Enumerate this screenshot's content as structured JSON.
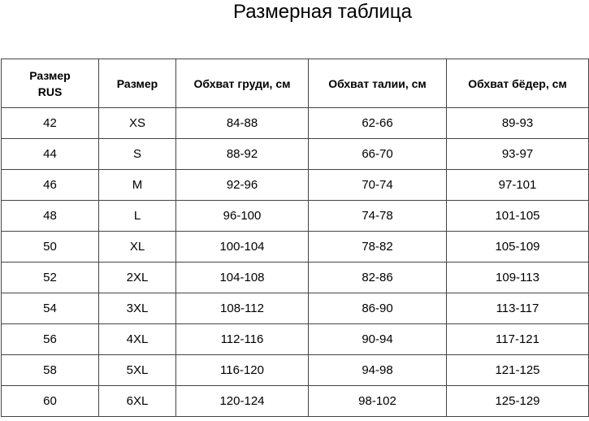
{
  "title": "Размерная таблица",
  "headers": [
    "Размер RUS",
    "Размер",
    "Обхват груди, см",
    "Обхват талии, см",
    "Обхват бёдер, см"
  ],
  "header_rus_line1": "Размер",
  "header_rus_line2": "RUS",
  "rows": [
    [
      "42",
      "XS",
      "84-88",
      "62-66",
      "89-93"
    ],
    [
      "44",
      "S",
      "88-92",
      "66-70",
      "93-97"
    ],
    [
      "46",
      "M",
      "92-96",
      "70-74",
      "97-101"
    ],
    [
      "48",
      "L",
      "96-100",
      "74-78",
      "101-105"
    ],
    [
      "50",
      "XL",
      "100-104",
      "78-82",
      "105-109"
    ],
    [
      "52",
      "2XL",
      "104-108",
      "82-86",
      "109-113"
    ],
    [
      "54",
      "3XL",
      "108-112",
      "86-90",
      "113-117"
    ],
    [
      "56",
      "4XL",
      "112-116",
      "90-94",
      "117-121"
    ],
    [
      "58",
      "5XL",
      "116-120",
      "94-98",
      "121-125"
    ],
    [
      "60",
      "6XL",
      "120-124",
      "98-102",
      "125-129"
    ]
  ]
}
